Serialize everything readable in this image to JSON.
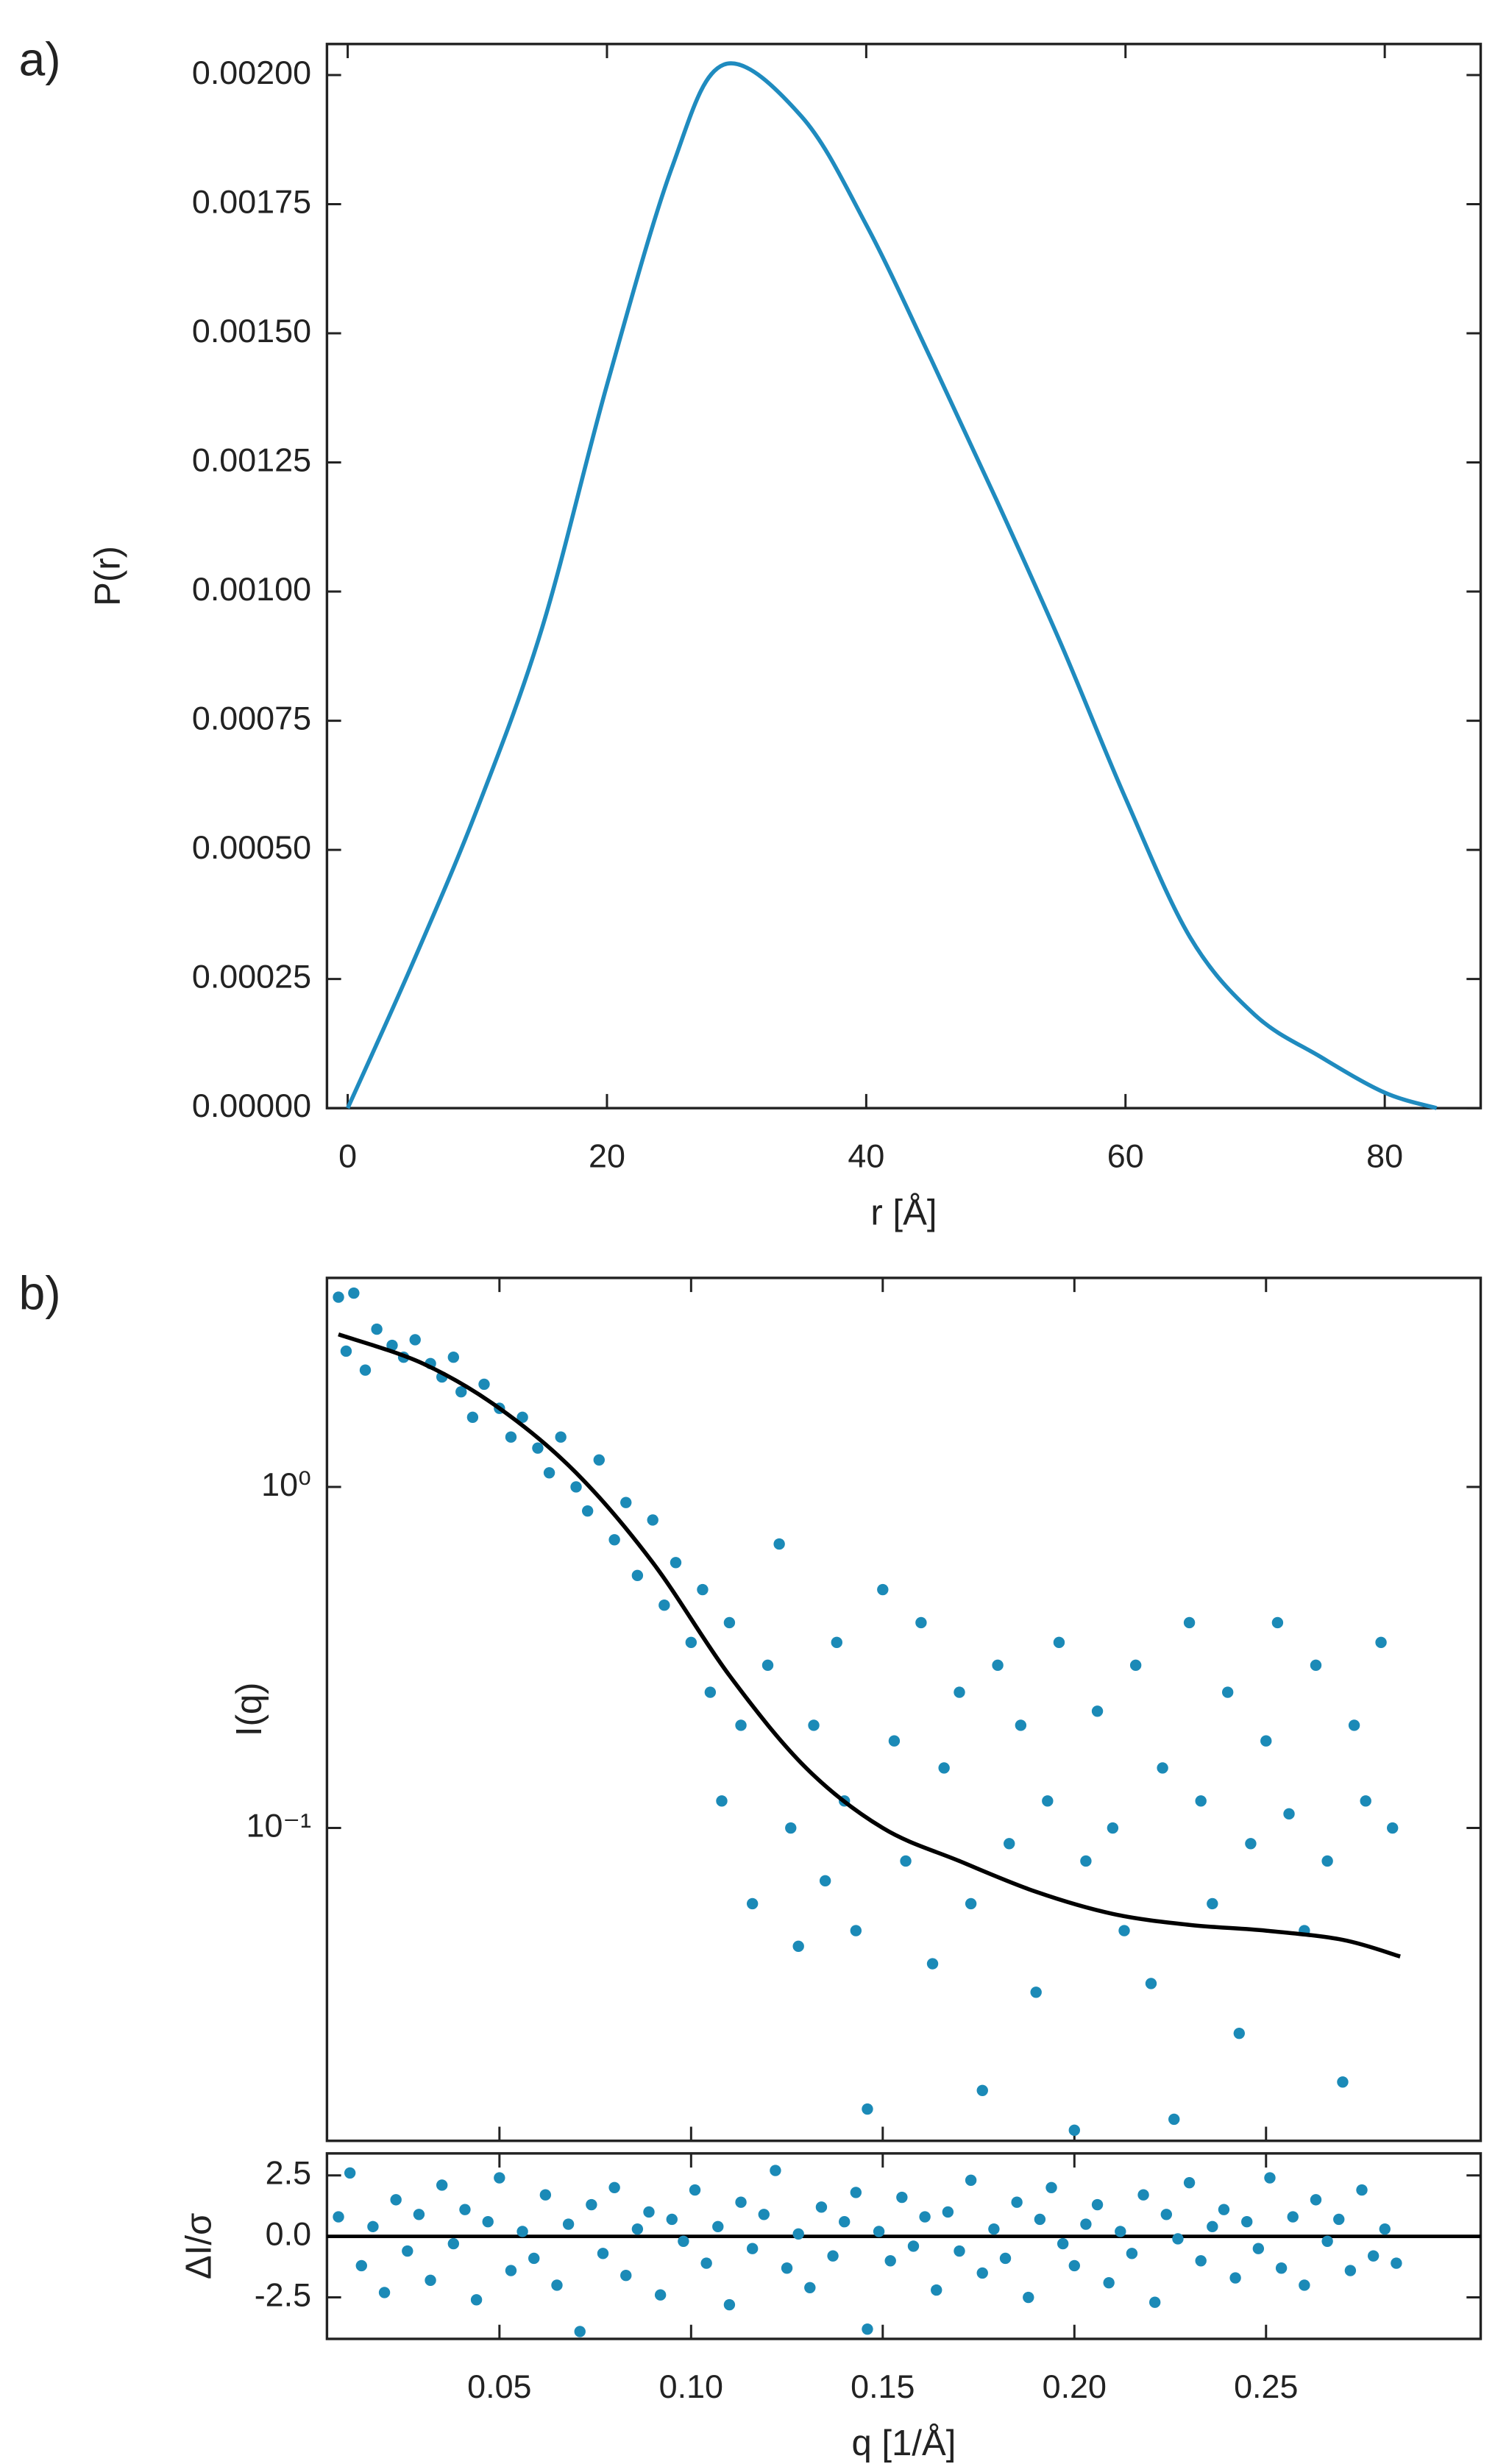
{
  "chart_data": [
    {
      "type": "line",
      "label": "a)",
      "xlabel": "r [Å]",
      "ylabel": "P(r)",
      "color": "#1f8bbf",
      "x": [
        0,
        5,
        10,
        15,
        20,
        25,
        29,
        35,
        40,
        45,
        50,
        55,
        60,
        65,
        70,
        75,
        80,
        84
      ],
      "values": [
        0,
        0.00028,
        0.00058,
        0.00093,
        0.0014,
        0.00182,
        0.00202,
        0.00192,
        0.00171,
        0.00145,
        0.00118,
        0.0009,
        0.0006,
        0.00033,
        0.00018,
        0.0001,
        3e-05,
        0
      ],
      "xlim": [
        -1.6,
        87.4
      ],
      "xticks": [
        0,
        20,
        40,
        60,
        80
      ],
      "ylim": [
        0,
        0.00206
      ],
      "yticks": [
        {
          "value": 0,
          "label": "0.00000"
        },
        0.00025,
        {
          "value": 0.0005,
          "label": "0.00050"
        },
        {
          "value": 0.00075,
          "label": "0.00075"
        },
        {
          "value": 0.001,
          "label": "0.00100"
        },
        {
          "value": 0.00125,
          "label": "0.00125"
        },
        {
          "value": 0.0015,
          "label": "0.00150"
        },
        {
          "value": 0.00175,
          "label": "0.00175"
        },
        {
          "value": 0.002,
          "label": "0.00200"
        }
      ]
    },
    {
      "type": "scatter",
      "label": "b)",
      "ylabel": "I(q)",
      "color": "#1b8ab7",
      "log_y": true,
      "x": [
        0.008,
        0.012,
        0.01,
        0.015,
        0.018,
        0.022,
        0.025,
        0.028,
        0.032,
        0.035,
        0.038,
        0.04,
        0.043,
        0.046,
        0.05,
        0.053,
        0.056,
        0.06,
        0.063,
        0.066,
        0.07,
        0.073,
        0.076,
        0.08,
        0.083,
        0.086,
        0.09,
        0.093,
        0.096,
        0.1,
        0.103,
        0.105,
        0.108,
        0.11,
        0.113,
        0.116,
        0.12,
        0.123,
        0.126,
        0.128,
        0.132,
        0.135,
        0.138,
        0.14,
        0.143,
        0.146,
        0.15,
        0.153,
        0.156,
        0.16,
        0.163,
        0.166,
        0.17,
        0.173,
        0.176,
        0.18,
        0.183,
        0.186,
        0.19,
        0.193,
        0.196,
        0.2,
        0.203,
        0.206,
        0.21,
        0.213,
        0.216,
        0.22,
        0.223,
        0.226,
        0.23,
        0.233,
        0.236,
        0.24,
        0.243,
        0.246,
        0.25,
        0.253,
        0.256,
        0.26,
        0.263,
        0.266,
        0.27,
        0.273,
        0.276,
        0.28,
        0.283
      ],
      "values": [
        3.6,
        3.7,
        2.5,
        2.2,
        2.9,
        2.6,
        2.4,
        2.7,
        2.3,
        2.1,
        2.4,
        1.9,
        1.6,
        2.0,
        1.7,
        1.4,
        1.6,
        1.3,
        1.1,
        1.4,
        1.0,
        0.85,
        1.2,
        0.7,
        0.9,
        0.55,
        0.8,
        0.45,
        0.6,
        0.35,
        0.5,
        0.25,
        0.12,
        0.4,
        0.2,
        0.06,
        0.3,
        0.68,
        0.1,
        0.045,
        0.2,
        0.07,
        0.35,
        0.12,
        0.05,
        0.015,
        0.5,
        0.18,
        0.08,
        0.4,
        0.04,
        0.15,
        0.25,
        0.06,
        0.017,
        0.3,
        0.09,
        0.2,
        0.033,
        0.12,
        0.35,
        0.013,
        0.08,
        0.22,
        0.1,
        0.05,
        0.3,
        0.035,
        0.15,
        0.014,
        0.4,
        0.12,
        0.06,
        0.25,
        0.025,
        0.09,
        0.18,
        0.4,
        0.11,
        0.05,
        0.3,
        0.08,
        0.018,
        0.2,
        0.12,
        0.35,
        0.1
      ],
      "fit": {
        "color": "#000000",
        "x": [
          0.008,
          0.03,
          0.05,
          0.07,
          0.09,
          0.11,
          0.13,
          0.15,
          0.17,
          0.19,
          0.21,
          0.23,
          0.25,
          0.27,
          0.285
        ],
        "values": [
          2.8,
          2.3,
          1.7,
          1.1,
          0.6,
          0.28,
          0.15,
          0.1,
          0.08,
          0.065,
          0.056,
          0.052,
          0.05,
          0.047,
          0.042
        ]
      },
      "xlim": [
        0.005,
        0.306
      ],
      "ylim": [
        0.0121,
        4.1
      ],
      "yticks": [
        {
          "value": 0.1,
          "label": "10⁻¹"
        },
        {
          "value": 1,
          "label": "10⁰"
        }
      ]
    },
    {
      "type": "scatter",
      "ylabel": "ΔI/σ",
      "xlabel": "q [1/Å]",
      "color": "#1b8ab7",
      "hline": 0,
      "x": [
        0.008,
        0.011,
        0.014,
        0.017,
        0.02,
        0.023,
        0.026,
        0.029,
        0.032,
        0.035,
        0.038,
        0.041,
        0.044,
        0.047,
        0.05,
        0.053,
        0.056,
        0.059,
        0.062,
        0.065,
        0.068,
        0.071,
        0.074,
        0.077,
        0.08,
        0.083,
        0.086,
        0.089,
        0.092,
        0.095,
        0.098,
        0.101,
        0.104,
        0.107,
        0.11,
        0.113,
        0.116,
        0.119,
        0.122,
        0.125,
        0.128,
        0.131,
        0.134,
        0.137,
        0.14,
        0.143,
        0.146,
        0.149,
        0.152,
        0.155,
        0.158,
        0.161,
        0.164,
        0.167,
        0.17,
        0.173,
        0.176,
        0.179,
        0.182,
        0.185,
        0.188,
        0.191,
        0.194,
        0.197,
        0.2,
        0.203,
        0.206,
        0.209,
        0.212,
        0.215,
        0.218,
        0.221,
        0.224,
        0.227,
        0.23,
        0.233,
        0.236,
        0.239,
        0.242,
        0.245,
        0.248,
        0.251,
        0.254,
        0.257,
        0.26,
        0.263,
        0.266,
        0.269,
        0.272,
        0.275,
        0.278,
        0.281,
        0.284
      ],
      "values": [
        0.8,
        2.6,
        -1.2,
        0.4,
        -2.3,
        1.5,
        -0.6,
        0.9,
        -1.8,
        2.1,
        -0.3,
        1.1,
        -2.6,
        0.6,
        2.4,
        -1.4,
        0.2,
        -0.9,
        1.7,
        -2.0,
        0.5,
        -3.9,
        1.3,
        -0.7,
        2.0,
        -1.6,
        0.3,
        1.0,
        -2.4,
        0.7,
        -0.2,
        1.9,
        -1.1,
        0.4,
        -2.8,
        1.4,
        -0.5,
        0.9,
        2.7,
        -1.3,
        0.1,
        -2.1,
        1.2,
        -0.8,
        0.6,
        1.8,
        -3.8,
        0.2,
        -1.0,
        1.6,
        -0.4,
        0.8,
        -2.2,
        1.0,
        -0.6,
        2.3,
        -1.5,
        0.3,
        -0.9,
        1.4,
        -2.5,
        0.7,
        2.0,
        -0.3,
        -1.2,
        0.5,
        1.3,
        -1.9,
        0.2,
        -0.7,
        1.7,
        -2.7,
        0.9,
        -0.1,
        2.2,
        -1.0,
        0.4,
        1.1,
        -1.7,
        0.6,
        -0.5,
        2.4,
        -1.3,
        0.8,
        -2.0,
        1.5,
        -0.2,
        0.7,
        -1.4,
        1.9,
        -0.8,
        0.3,
        -1.1
      ],
      "xlim": [
        0.005,
        0.306
      ],
      "xticks": [
        0.05,
        {
          "value": 0.1,
          "label": "0.10"
        },
        0.15,
        {
          "value": 0.2,
          "label": "0.20"
        },
        0.25
      ],
      "ylim": [
        -4.2,
        3.4
      ],
      "yticks": [
        -2.5,
        {
          "value": 0,
          "label": "0.0"
        },
        2.5
      ]
    }
  ]
}
